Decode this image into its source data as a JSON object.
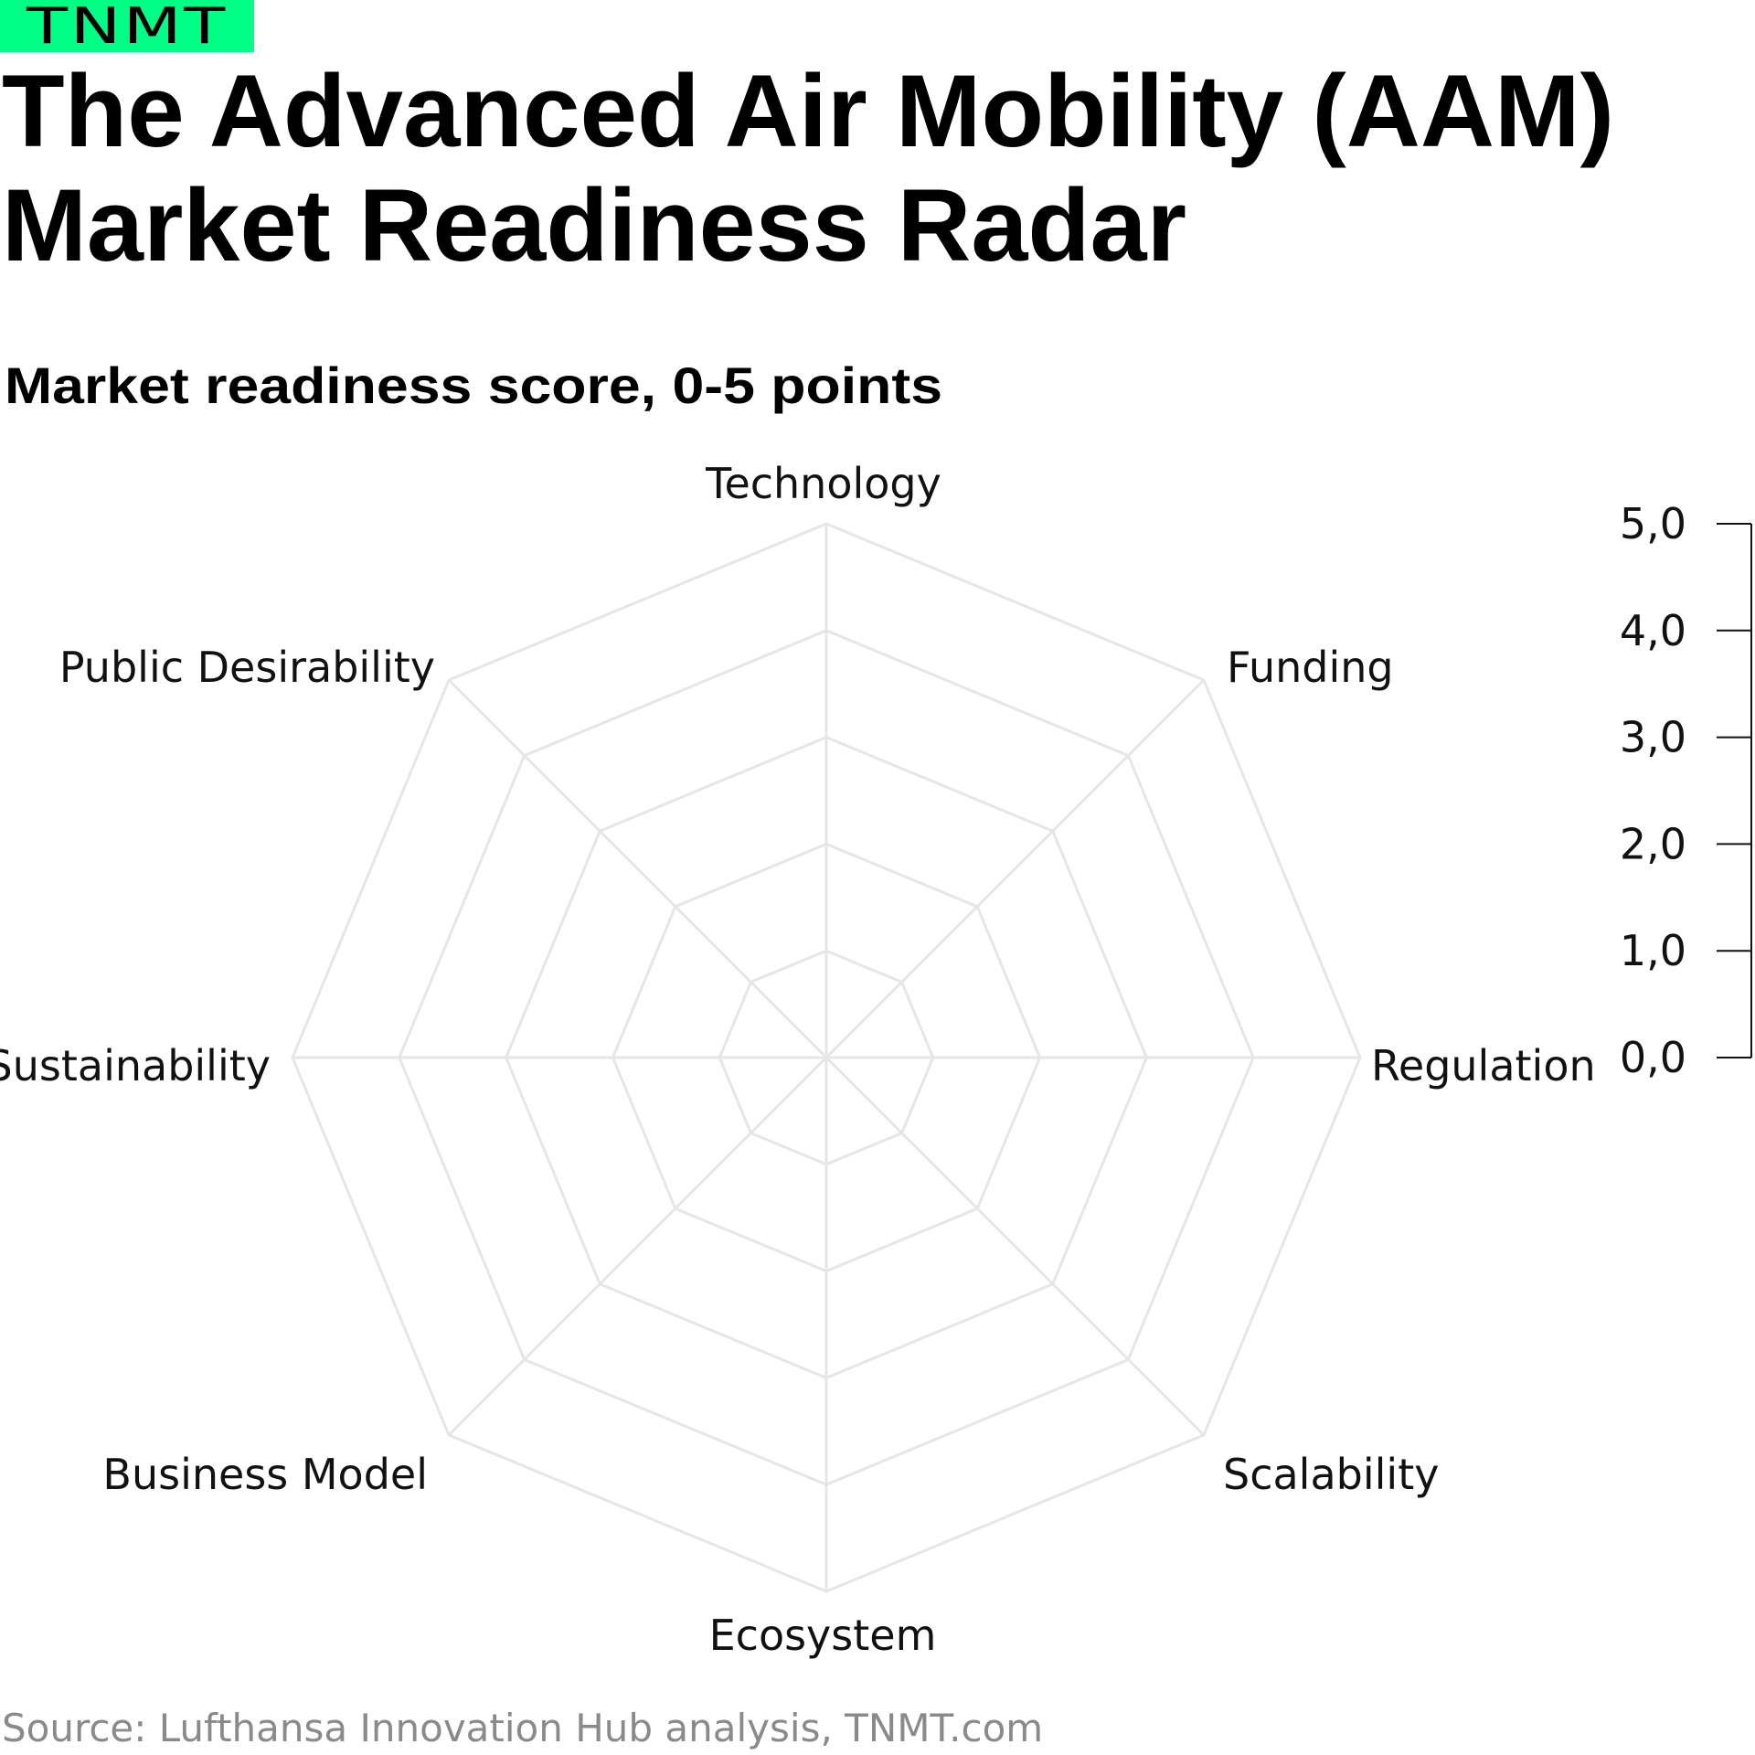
{
  "brand": {
    "logo": "TNMT",
    "color": "#00FF85"
  },
  "header": {
    "title_lines": [
      "The Advanced Air Mobility (AAM)",
      "Market Readiness Radar"
    ],
    "subtitle": "Market readiness score, 0-5 points"
  },
  "chart_data": {
    "type": "radar",
    "axes": [
      "Technology",
      "Funding",
      "Regulation",
      "Scalability",
      "Ecosystem",
      "Business Model",
      "Sustainability",
      "Public Desirability"
    ],
    "range": [
      0,
      5
    ],
    "grid_levels": [
      1,
      2,
      3,
      4,
      5
    ],
    "scale_ticks": [
      "5,0",
      "4,0",
      "3,0",
      "2,0",
      "1,0",
      "0,0"
    ],
    "scale_tick_values": [
      5,
      4,
      3,
      2,
      1,
      0
    ],
    "series": [],
    "grid_color": "#e6e6e6"
  },
  "footer": {
    "source": "Source: Lufthansa Innovation Hub analysis, TNMT.com"
  }
}
